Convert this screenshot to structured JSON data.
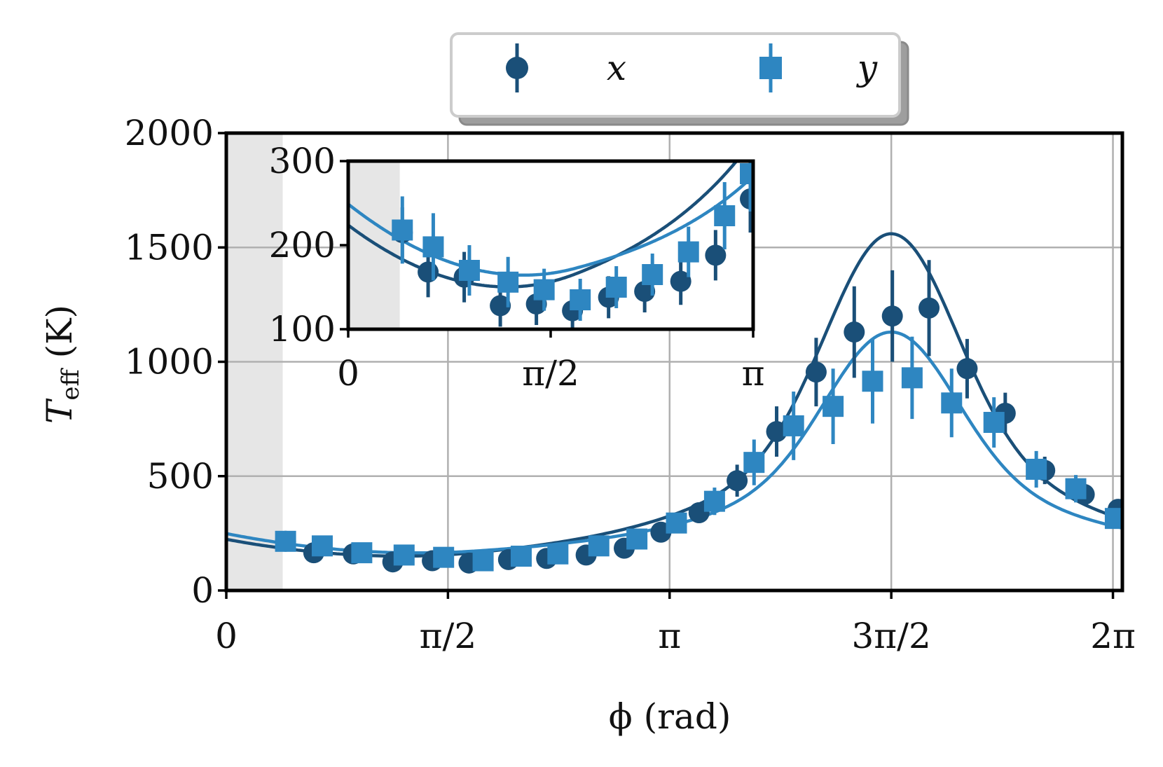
{
  "chart_data": [
    {
      "type": "scatter",
      "title": "",
      "xlabel": "ϕ (rad)",
      "ylabel": "T_eff (K)",
      "ylabel_main": "T",
      "ylabel_sub": "eff",
      "ylabel_unit": " (K)",
      "xlim": [
        0,
        6.35
      ],
      "ylim": [
        0,
        2000
      ],
      "grid": true,
      "shaded_region_x": [
        0,
        0.4
      ],
      "x_ticks": [
        {
          "value": 0,
          "label": "0"
        },
        {
          "value": 1.5708,
          "label": "π/2"
        },
        {
          "value": 3.1416,
          "label": "π"
        },
        {
          "value": 4.7124,
          "label": "3π/2"
        },
        {
          "value": 6.2832,
          "label": "2π"
        }
      ],
      "y_ticks": [
        {
          "value": 0,
          "label": "0"
        },
        {
          "value": 500,
          "label": "500"
        },
        {
          "value": 1000,
          "label": "1000"
        },
        {
          "value": 1500,
          "label": "1500"
        },
        {
          "value": 2000,
          "label": "2000"
        }
      ],
      "legend": {
        "position": "top-center",
        "entries": [
          {
            "label": "x",
            "color": "#1a4f78",
            "marker": "circle"
          },
          {
            "label": "y",
            "color": "#2e86c1",
            "marker": "square"
          }
        ]
      },
      "series": [
        {
          "name": "x",
          "color": "#1a4f78",
          "marker": "circle",
          "points": [
            {
              "x": 0.42,
              "y": 215,
              "err": 30
            },
            {
              "x": 0.62,
              "y": 165,
              "err": 25
            },
            {
              "x": 0.9,
              "y": 160,
              "err": 25
            },
            {
              "x": 1.18,
              "y": 125,
              "err": 20
            },
            {
              "x": 1.46,
              "y": 130,
              "err": 20
            },
            {
              "x": 1.72,
              "y": 120,
              "err": 20
            },
            {
              "x": 2.0,
              "y": 135,
              "err": 20
            },
            {
              "x": 2.27,
              "y": 140,
              "err": 20
            },
            {
              "x": 2.55,
              "y": 155,
              "err": 25
            },
            {
              "x": 2.82,
              "y": 185,
              "err": 25
            },
            {
              "x": 3.08,
              "y": 255,
              "err": 30
            },
            {
              "x": 3.35,
              "y": 340,
              "err": 45
            },
            {
              "x": 3.62,
              "y": 480,
              "err": 70
            },
            {
              "x": 3.9,
              "y": 695,
              "err": 110
            },
            {
              "x": 4.18,
              "y": 955,
              "err": 150
            },
            {
              "x": 4.45,
              "y": 1130,
              "err": 200
            },
            {
              "x": 4.72,
              "y": 1200,
              "err": 200
            },
            {
              "x": 4.98,
              "y": 1235,
              "err": 210
            },
            {
              "x": 5.25,
              "y": 970,
              "err": 130
            },
            {
              "x": 5.52,
              "y": 775,
              "err": 90
            },
            {
              "x": 5.8,
              "y": 525,
              "err": 60
            },
            {
              "x": 6.08,
              "y": 420,
              "err": 45
            },
            {
              "x": 6.32,
              "y": 355,
              "err": 35
            }
          ]
        },
        {
          "name": "y",
          "color": "#2e86c1",
          "marker": "square",
          "points": [
            {
              "x": 0.42,
              "y": 215,
              "err": 30
            },
            {
              "x": 0.68,
              "y": 195,
              "err": 30
            },
            {
              "x": 0.96,
              "y": 165,
              "err": 25
            },
            {
              "x": 1.26,
              "y": 155,
              "err": 25
            },
            {
              "x": 1.54,
              "y": 145,
              "err": 20
            },
            {
              "x": 1.82,
              "y": 130,
              "err": 20
            },
            {
              "x": 2.09,
              "y": 150,
              "err": 20
            },
            {
              "x": 2.35,
              "y": 160,
              "err": 25
            },
            {
              "x": 2.64,
              "y": 195,
              "err": 25
            },
            {
              "x": 2.91,
              "y": 225,
              "err": 30
            },
            {
              "x": 3.19,
              "y": 295,
              "err": 40
            },
            {
              "x": 3.46,
              "y": 390,
              "err": 60
            },
            {
              "x": 3.74,
              "y": 560,
              "err": 100
            },
            {
              "x": 4.02,
              "y": 720,
              "err": 150
            },
            {
              "x": 4.3,
              "y": 805,
              "err": 165
            },
            {
              "x": 4.58,
              "y": 915,
              "err": 185
            },
            {
              "x": 4.86,
              "y": 930,
              "err": 180
            },
            {
              "x": 5.14,
              "y": 820,
              "err": 150
            },
            {
              "x": 5.44,
              "y": 735,
              "err": 110
            },
            {
              "x": 5.74,
              "y": 530,
              "err": 80
            },
            {
              "x": 6.02,
              "y": 445,
              "err": 60
            },
            {
              "x": 6.3,
              "y": 315,
              "err": 40
            }
          ]
        }
      ],
      "fits": [
        {
          "series": "x",
          "color": "#1a4f78",
          "center": 4.7124,
          "peak": 1560,
          "min_value": 165
        },
        {
          "series": "y",
          "color": "#2e86c1",
          "center": 4.7124,
          "peak": 1130,
          "min_value": 172
        }
      ]
    },
    {
      "type": "scatter",
      "title": "",
      "inset": true,
      "xlim": [
        0,
        3.1416
      ],
      "ylim": [
        100,
        300
      ],
      "grid": false,
      "shaded_region_x": [
        0,
        0.4
      ],
      "x_ticks": [
        {
          "value": 0,
          "label": "0"
        },
        {
          "value": 1.5708,
          "label": "π/2"
        },
        {
          "value": 3.1416,
          "label": "π"
        }
      ],
      "y_ticks": [
        {
          "value": 100,
          "label": "100"
        },
        {
          "value": 200,
          "label": "200"
        },
        {
          "value": 300,
          "label": "300"
        }
      ],
      "series": [
        {
          "name": "x",
          "color": "#1a4f78",
          "marker": "circle",
          "points": [
            {
              "x": 0.42,
              "y": 215,
              "err": 30
            },
            {
              "x": 0.62,
              "y": 168,
              "err": 30
            },
            {
              "x": 0.9,
              "y": 162,
              "err": 30
            },
            {
              "x": 1.18,
              "y": 128,
              "err": 25
            },
            {
              "x": 1.46,
              "y": 130,
              "err": 25
            },
            {
              "x": 1.74,
              "y": 122,
              "err": 22
            },
            {
              "x": 2.02,
              "y": 138,
              "err": 25
            },
            {
              "x": 2.3,
              "y": 145,
              "err": 25
            },
            {
              "x": 2.58,
              "y": 157,
              "err": 28
            },
            {
              "x": 2.85,
              "y": 188,
              "err": 30
            },
            {
              "x": 3.12,
              "y": 255,
              "err": 40
            }
          ]
        },
        {
          "name": "y",
          "color": "#2e86c1",
          "marker": "square",
          "points": [
            {
              "x": 0.42,
              "y": 218,
              "err": 40
            },
            {
              "x": 0.66,
              "y": 198,
              "err": 40
            },
            {
              "x": 0.94,
              "y": 170,
              "err": 30
            },
            {
              "x": 1.24,
              "y": 156,
              "err": 30
            },
            {
              "x": 1.52,
              "y": 147,
              "err": 25
            },
            {
              "x": 1.8,
              "y": 135,
              "err": 25
            },
            {
              "x": 2.08,
              "y": 150,
              "err": 25
            },
            {
              "x": 2.36,
              "y": 165,
              "err": 25
            },
            {
              "x": 2.64,
              "y": 192,
              "err": 30
            },
            {
              "x": 2.92,
              "y": 235,
              "err": 40
            },
            {
              "x": 3.12,
              "y": 285,
              "err": 45
            }
          ]
        }
      ]
    }
  ]
}
